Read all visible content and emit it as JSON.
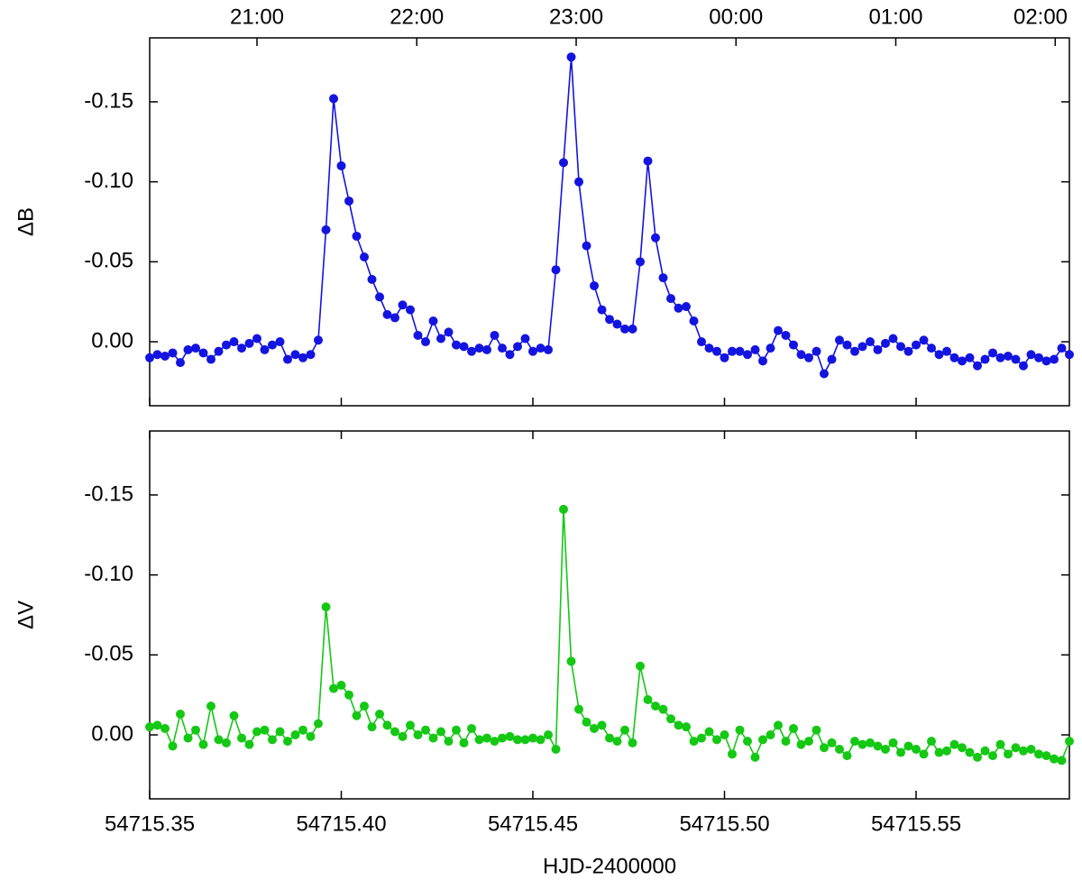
{
  "chart_data": [
    {
      "type": "line",
      "ylabel": "ΔB",
      "xlim": [
        54715.35,
        54715.59
      ],
      "ylim": [
        0.04,
        -0.19
      ],
      "yticks": [
        {
          "value": -0.15,
          "label": "-0.15"
        },
        {
          "value": -0.1,
          "label": "-0.10"
        },
        {
          "value": -0.05,
          "label": "-0.05"
        },
        {
          "value": 0,
          "label": "0.00"
        }
      ],
      "x2ticks": [
        {
          "value": 54715.378,
          "label": "21:00"
        },
        {
          "value": 54715.4197,
          "label": "22:00"
        },
        {
          "value": 54715.4613,
          "label": "23:00"
        },
        {
          "value": 54715.503,
          "label": "00:00"
        },
        {
          "value": 54715.5447,
          "label": "01:00"
        },
        {
          "value": 54715.5863,
          "label": "02:00"
        }
      ],
      "x": [
        54715.35,
        54715.352,
        54715.354,
        54715.356,
        54715.358,
        54715.36,
        54715.362,
        54715.364,
        54715.366,
        54715.368,
        54715.37,
        54715.372,
        54715.374,
        54715.376,
        54715.378,
        54715.38,
        54715.382,
        54715.384,
        54715.386,
        54715.388,
        54715.39,
        54715.392,
        54715.394,
        54715.396,
        54715.398,
        54715.4,
        54715.402,
        54715.404,
        54715.406,
        54715.408,
        54715.41,
        54715.412,
        54715.414,
        54715.416,
        54715.418,
        54715.42,
        54715.422,
        54715.424,
        54715.426,
        54715.428,
        54715.43,
        54715.432,
        54715.434,
        54715.436,
        54715.438,
        54715.44,
        54715.442,
        54715.444,
        54715.446,
        54715.448,
        54715.45,
        54715.452,
        54715.454,
        54715.456,
        54715.458,
        54715.46,
        54715.462,
        54715.464,
        54715.466,
        54715.468,
        54715.47,
        54715.472,
        54715.474,
        54715.476,
        54715.478,
        54715.48,
        54715.482,
        54715.484,
        54715.486,
        54715.488,
        54715.49,
        54715.492,
        54715.494,
        54715.496,
        54715.498,
        54715.5,
        54715.502,
        54715.504,
        54715.506,
        54715.508,
        54715.51,
        54715.512,
        54715.514,
        54715.516,
        54715.518,
        54715.52,
        54715.522,
        54715.524,
        54715.526,
        54715.528,
        54715.53,
        54715.532,
        54715.534,
        54715.536,
        54715.538,
        54715.54,
        54715.542,
        54715.544,
        54715.546,
        54715.548,
        54715.55,
        54715.552,
        54715.554,
        54715.556,
        54715.558,
        54715.56,
        54715.562,
        54715.564,
        54715.566,
        54715.568,
        54715.57,
        54715.572,
        54715.574,
        54715.576,
        54715.578,
        54715.58,
        54715.582,
        54715.584,
        54715.586,
        54715.588,
        54715.59
      ],
      "series": [
        {
          "name": "ΔB",
          "color": "#1414e0",
          "values": [
            0.01,
            0.008,
            0.009,
            0.007,
            0.013,
            0.005,
            0.004,
            0.007,
            0.011,
            0.006,
            0.002,
            0.0,
            0.004,
            0.001,
            -0.002,
            0.005,
            0.002,
            0.0,
            0.011,
            0.008,
            0.01,
            0.008,
            -0.001,
            -0.07,
            -0.152,
            -0.11,
            -0.088,
            -0.066,
            -0.053,
            -0.039,
            -0.028,
            -0.017,
            -0.015,
            -0.023,
            -0.02,
            -0.004,
            0.0,
            -0.013,
            -0.002,
            -0.006,
            0.002,
            0.003,
            0.006,
            0.004,
            0.005,
            -0.004,
            0.004,
            0.008,
            0.003,
            -0.002,
            0.006,
            0.004,
            0.005,
            -0.045,
            -0.112,
            -0.178,
            -0.1,
            -0.06,
            -0.035,
            -0.02,
            -0.014,
            -0.011,
            -0.008,
            -0.008,
            -0.05,
            -0.113,
            -0.065,
            -0.04,
            -0.027,
            -0.021,
            -0.022,
            -0.013,
            0.0,
            0.004,
            0.006,
            0.01,
            0.006,
            0.006,
            0.008,
            0.005,
            0.012,
            0.004,
            -0.007,
            -0.004,
            0.002,
            0.008,
            0.01,
            0.006,
            0.02,
            0.011,
            -0.001,
            0.002,
            0.006,
            0.003,
            0.0,
            0.005,
            0.001,
            -0.002,
            0.003,
            0.006,
            0.002,
            -0.001,
            0.004,
            0.008,
            0.006,
            0.01,
            0.012,
            0.01,
            0.015,
            0.011,
            0.007,
            0.01,
            0.009,
            0.011,
            0.015,
            0.008,
            0.01,
            0.012,
            0.011,
            0.004,
            0.008
          ]
        }
      ]
    },
    {
      "type": "line",
      "ylabel": "ΔV",
      "xlabel": "HJD-2400000",
      "xlim": [
        54715.35,
        54715.59
      ],
      "ylim": [
        0.04,
        -0.19
      ],
      "yticks": [
        {
          "value": -0.15,
          "label": "-0.15"
        },
        {
          "value": -0.1,
          "label": "-0.10"
        },
        {
          "value": -0.05,
          "label": "-0.05"
        },
        {
          "value": 0,
          "label": "0.00"
        }
      ],
      "xticks": [
        {
          "value": 54715.35,
          "label": "54715.35"
        },
        {
          "value": 54715.4,
          "label": "54715.40"
        },
        {
          "value": 54715.45,
          "label": "54715.45"
        },
        {
          "value": 54715.5,
          "label": "54715.50"
        },
        {
          "value": 54715.55,
          "label": "54715.55"
        }
      ],
      "x": [
        54715.35,
        54715.352,
        54715.354,
        54715.356,
        54715.358,
        54715.36,
        54715.362,
        54715.364,
        54715.366,
        54715.368,
        54715.37,
        54715.372,
        54715.374,
        54715.376,
        54715.378,
        54715.38,
        54715.382,
        54715.384,
        54715.386,
        54715.388,
        54715.39,
        54715.392,
        54715.394,
        54715.396,
        54715.398,
        54715.4,
        54715.402,
        54715.404,
        54715.406,
        54715.408,
        54715.41,
        54715.412,
        54715.414,
        54715.416,
        54715.418,
        54715.42,
        54715.422,
        54715.424,
        54715.426,
        54715.428,
        54715.43,
        54715.432,
        54715.434,
        54715.436,
        54715.438,
        54715.44,
        54715.442,
        54715.444,
        54715.446,
        54715.448,
        54715.45,
        54715.452,
        54715.454,
        54715.456,
        54715.458,
        54715.46,
        54715.462,
        54715.464,
        54715.466,
        54715.468,
        54715.47,
        54715.472,
        54715.474,
        54715.476,
        54715.478,
        54715.48,
        54715.482,
        54715.484,
        54715.486,
        54715.488,
        54715.49,
        54715.492,
        54715.494,
        54715.496,
        54715.498,
        54715.5,
        54715.502,
        54715.504,
        54715.506,
        54715.508,
        54715.51,
        54715.512,
        54715.514,
        54715.516,
        54715.518,
        54715.52,
        54715.522,
        54715.524,
        54715.526,
        54715.528,
        54715.53,
        54715.532,
        54715.534,
        54715.536,
        54715.538,
        54715.54,
        54715.542,
        54715.544,
        54715.546,
        54715.548,
        54715.55,
        54715.552,
        54715.554,
        54715.556,
        54715.558,
        54715.56,
        54715.562,
        54715.564,
        54715.566,
        54715.568,
        54715.57,
        54715.572,
        54715.574,
        54715.576,
        54715.578,
        54715.58,
        54715.582,
        54715.584,
        54715.586,
        54715.588,
        54715.59
      ],
      "series": [
        {
          "name": "ΔV",
          "color": "#14c814",
          "values": [
            -0.005,
            -0.006,
            -0.004,
            0.007,
            -0.013,
            0.002,
            -0.003,
            0.006,
            -0.018,
            0.003,
            0.005,
            -0.012,
            0.002,
            0.006,
            -0.002,
            -0.003,
            0.003,
            -0.002,
            0.004,
            0.0,
            -0.003,
            0.001,
            -0.007,
            -0.08,
            -0.029,
            -0.031,
            -0.025,
            -0.012,
            -0.018,
            -0.005,
            -0.013,
            -0.006,
            -0.002,
            0.001,
            -0.006,
            0.0,
            -0.003,
            0.002,
            -0.002,
            0.004,
            -0.003,
            0.005,
            -0.004,
            0.003,
            0.002,
            0.004,
            0.002,
            0.001,
            0.003,
            0.003,
            0.002,
            0.003,
            0.0,
            0.009,
            -0.141,
            -0.046,
            -0.016,
            -0.008,
            -0.004,
            -0.006,
            0.002,
            0.004,
            -0.003,
            0.005,
            -0.043,
            -0.022,
            -0.018,
            -0.016,
            -0.01,
            -0.006,
            -0.005,
            0.004,
            0.002,
            -0.002,
            0.003,
            0.0,
            0.012,
            -0.003,
            0.004,
            0.014,
            0.003,
            0.0,
            -0.006,
            0.004,
            -0.004,
            0.006,
            0.004,
            -0.003,
            0.008,
            0.005,
            0.009,
            0.013,
            0.004,
            0.006,
            0.005,
            0.007,
            0.009,
            0.005,
            0.011,
            0.007,
            0.009,
            0.012,
            0.004,
            0.011,
            0.01,
            0.006,
            0.008,
            0.011,
            0.014,
            0.01,
            0.013,
            0.006,
            0.012,
            0.008,
            0.01,
            0.009,
            0.012,
            0.013,
            0.015,
            0.016,
            0.004
          ]
        }
      ]
    }
  ]
}
